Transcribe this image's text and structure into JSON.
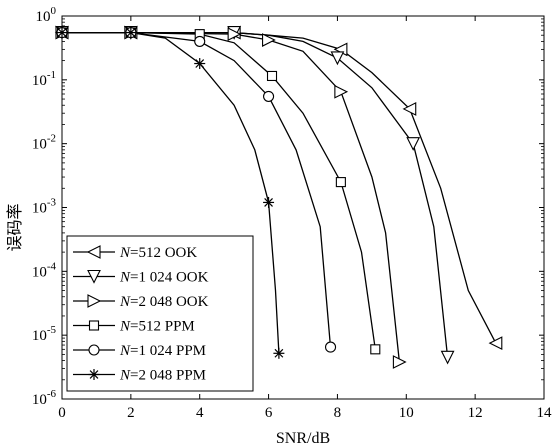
{
  "chart_data": {
    "type": "line",
    "title": "",
    "xlabel": "SNR/dB",
    "ylabel": "误码率",
    "x_scale": "linear",
    "y_scale": "log",
    "xlim": [
      0,
      14
    ],
    "ylim": [
      1e-06,
      1
    ],
    "x_ticks": [
      "0",
      "2",
      "4",
      "6",
      "8",
      "10",
      "12",
      "14"
    ],
    "y_ticks": [
      {
        "base": "10",
        "exp": "0"
      },
      {
        "base": "10",
        "exp": "-1"
      },
      {
        "base": "10",
        "exp": "-2"
      },
      {
        "base": "10",
        "exp": "-3"
      },
      {
        "base": "10",
        "exp": "-4"
      },
      {
        "base": "10",
        "exp": "-5"
      },
      {
        "base": "10",
        "exp": "-6"
      }
    ],
    "legend_position": "bottom-left",
    "grid": false,
    "series": [
      {
        "name": "N=512 OOK",
        "name_var": "N",
        "name_rest": "=512 OOK",
        "marker": "triangle-left",
        "x": [
          0,
          2,
          4,
          5,
          6,
          7,
          8.1,
          9,
          10.1,
          11,
          11.8,
          12.6
        ],
        "y": [
          0.55,
          0.55,
          0.55,
          0.55,
          0.5,
          0.45,
          0.3,
          0.13,
          0.035,
          0.002,
          5e-05,
          7.5e-06
        ],
        "marked": [
          0,
          1,
          3,
          6,
          8,
          11
        ]
      },
      {
        "name": "N=1 024 OOK",
        "name_var": "N",
        "name_rest": "=1 024 OOK",
        "marker": "triangle-down",
        "x": [
          0,
          2,
          4,
          5,
          6,
          7,
          8,
          9,
          10.2,
          10.8,
          11.2
        ],
        "y": [
          0.55,
          0.55,
          0.55,
          0.55,
          0.5,
          0.4,
          0.22,
          0.075,
          0.01,
          0.0005,
          4.5e-06
        ],
        "marked": [
          0,
          1,
          3,
          6,
          8,
          10
        ]
      },
      {
        "name": "N=2 048 OOK",
        "name_var": "N",
        "name_rest": "=2 048 OOK",
        "marker": "triangle-right",
        "x": [
          0,
          2,
          5,
          6,
          7,
          8.1,
          9,
          9.4,
          9.8
        ],
        "y": [
          0.55,
          0.55,
          0.52,
          0.42,
          0.28,
          0.065,
          0.003,
          0.0004,
          3.8e-06
        ],
        "marked": [
          0,
          1,
          2,
          3,
          5,
          8
        ]
      },
      {
        "name": "N=512 PPM",
        "name_var": "N",
        "name_rest": "=512 PPM",
        "marker": "square",
        "x": [
          0,
          2,
          4,
          5,
          6.1,
          7,
          8.1,
          8.7,
          9.1
        ],
        "y": [
          0.55,
          0.55,
          0.52,
          0.38,
          0.115,
          0.03,
          0.0025,
          0.0002,
          6e-06
        ],
        "marked": [
          0,
          1,
          2,
          4,
          6,
          8
        ]
      },
      {
        "name": "N=1 024 PPM",
        "name_var": "N",
        "name_rest": "=1 024 PPM",
        "marker": "circle",
        "x": [
          0,
          2,
          4,
          5,
          6,
          6.8,
          7.5,
          7.8
        ],
        "y": [
          0.55,
          0.55,
          0.4,
          0.2,
          0.055,
          0.008,
          0.0005,
          6.5e-06
        ],
        "marked": [
          0,
          1,
          2,
          4,
          7
        ]
      },
      {
        "name": "N=2 048 PPM",
        "name_var": "N",
        "name_rest": "=2 048 PPM",
        "marker": "asterisk",
        "x": [
          0,
          2,
          3,
          4,
          5,
          5.6,
          6,
          6.2,
          6.3
        ],
        "y": [
          0.55,
          0.55,
          0.45,
          0.18,
          0.04,
          0.008,
          0.0012,
          5e-05,
          5.2e-06
        ],
        "marked": [
          0,
          1,
          3,
          6,
          8
        ]
      }
    ]
  }
}
